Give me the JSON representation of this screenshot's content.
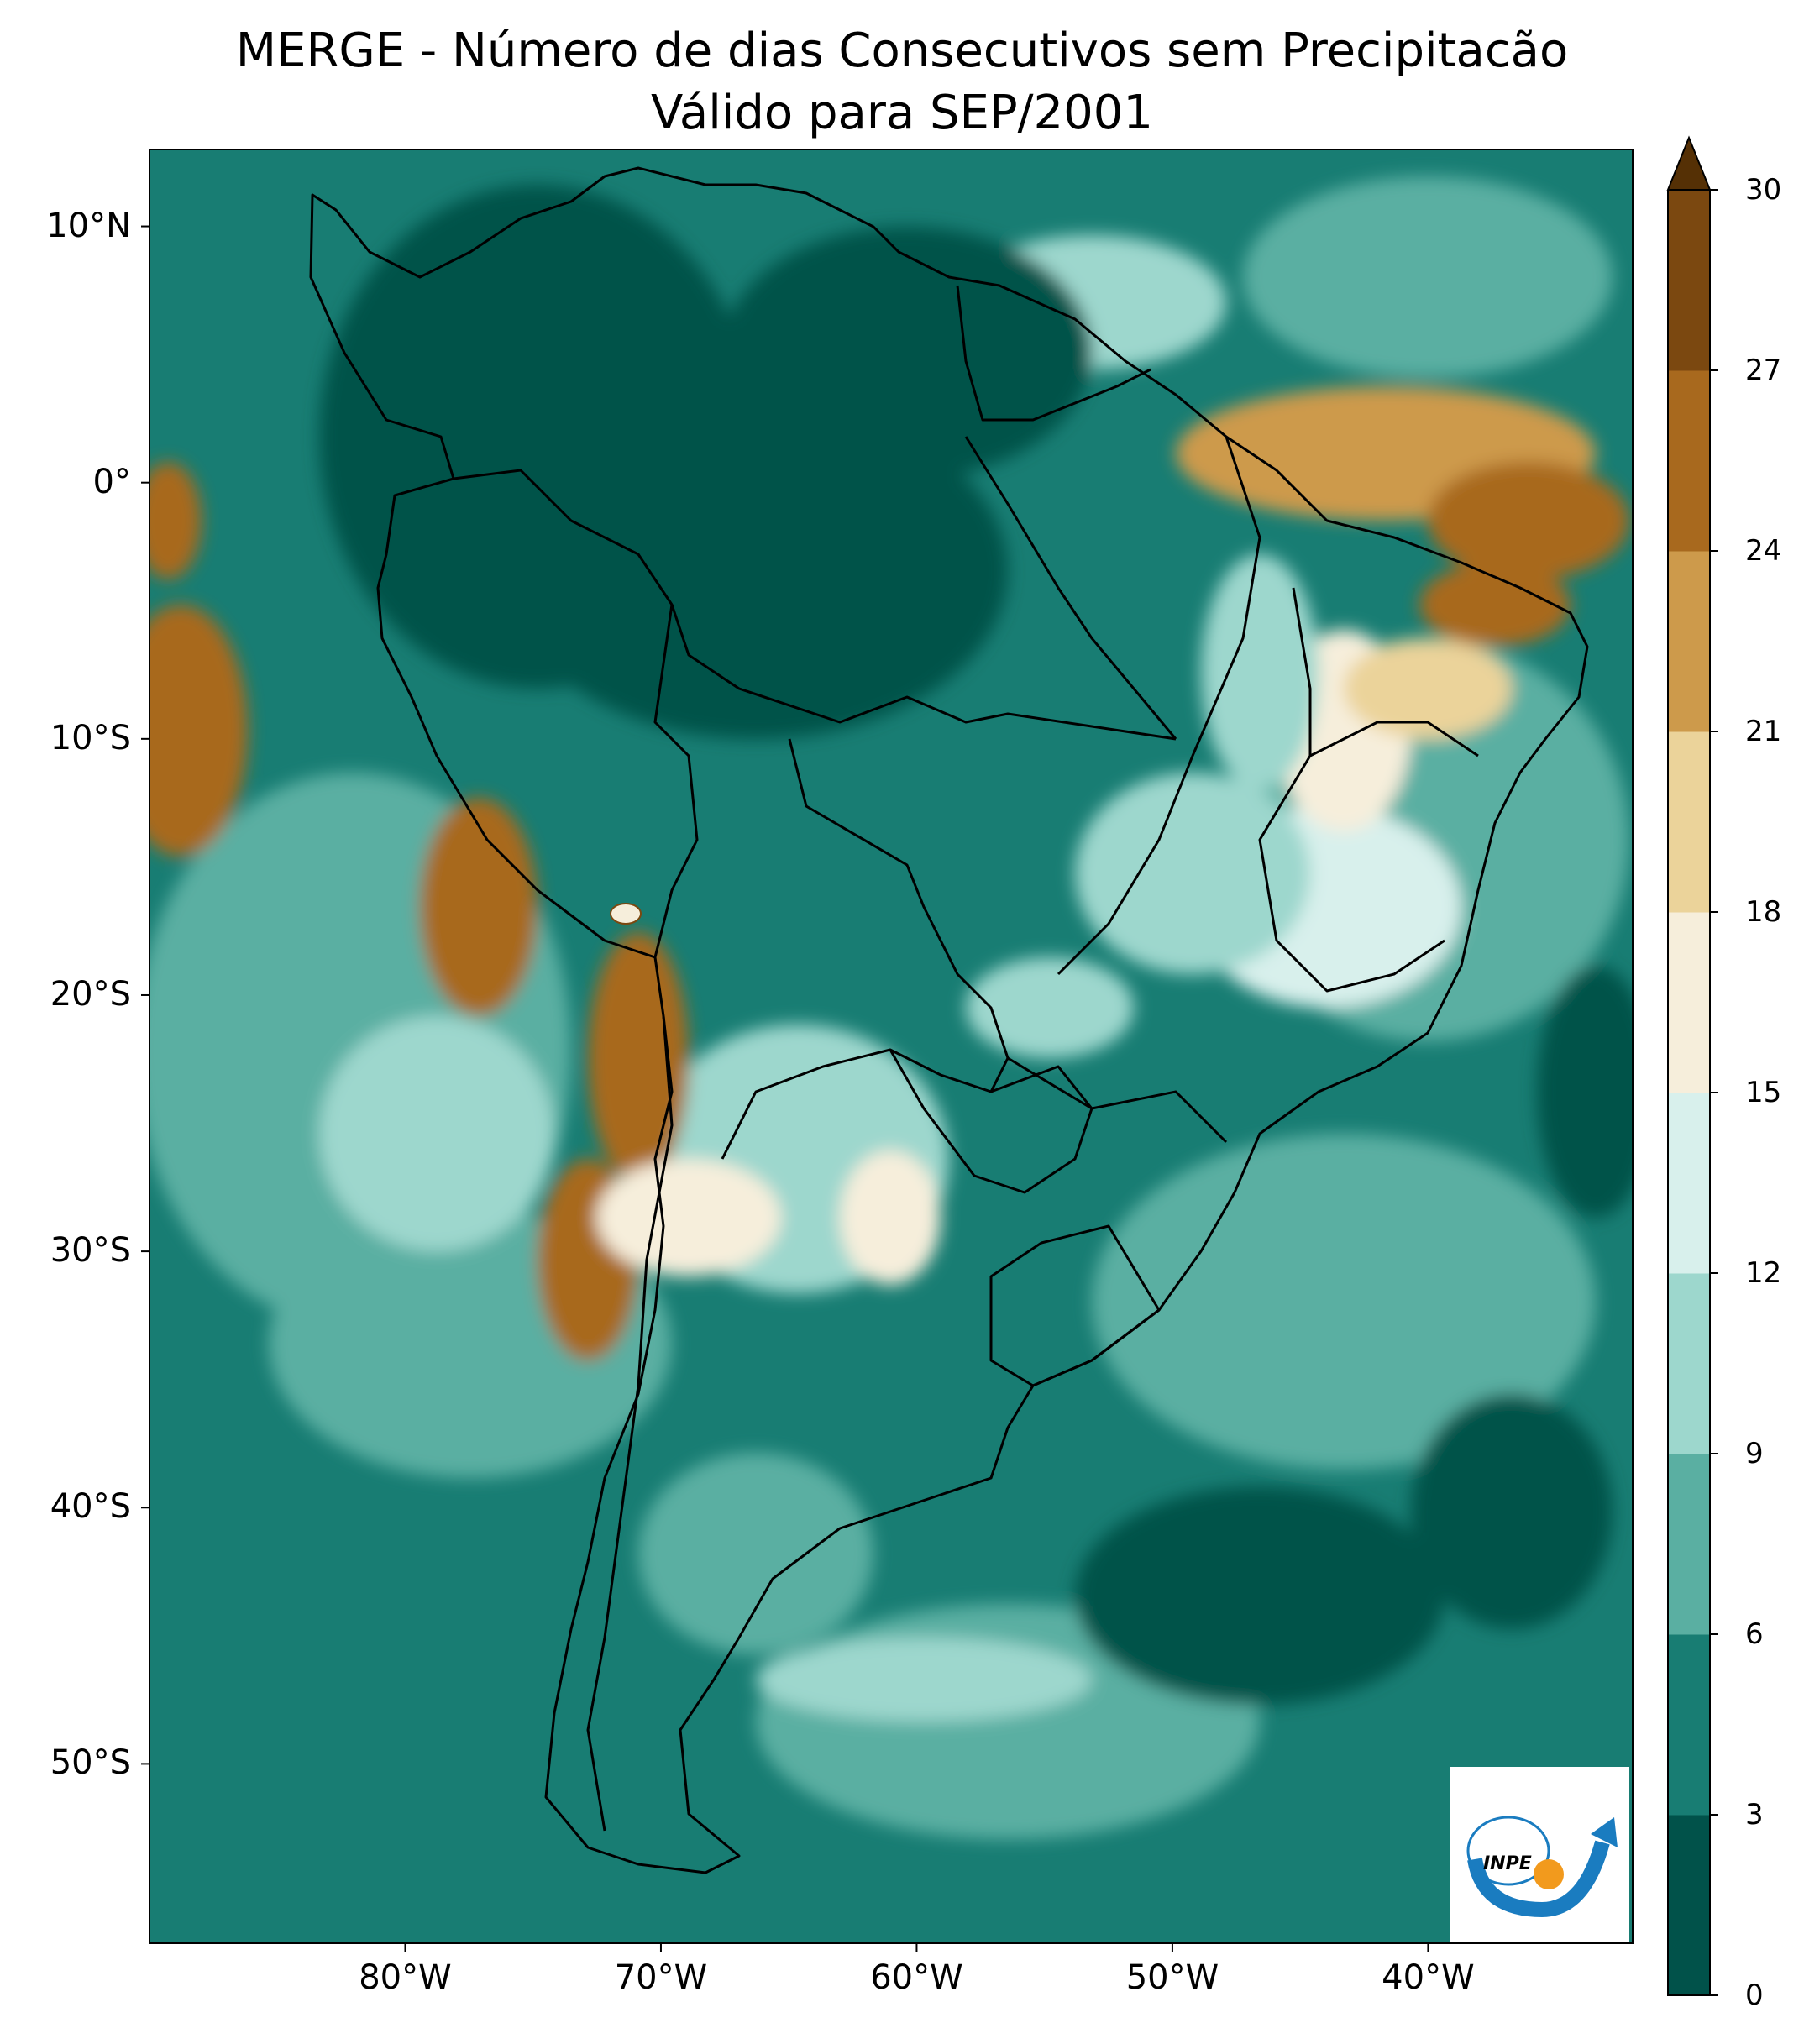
{
  "title_line1": "MERGE - Número de dias Consecutivos sem Precipitacão",
  "title_line2": "Válido para SEP/2001",
  "lat_ticks": [
    {
      "label": "10°N",
      "lat": 10
    },
    {
      "label": "0°",
      "lat": 0
    },
    {
      "label": "10°S",
      "lat": -10
    },
    {
      "label": "20°S",
      "lat": -20
    },
    {
      "label": "30°S",
      "lat": -30
    },
    {
      "label": "40°S",
      "lat": -40
    },
    {
      "label": "50°S",
      "lat": -50
    }
  ],
  "lon_ticks": [
    {
      "label": "80°W",
      "lon": -80
    },
    {
      "label": "70°W",
      "lon": -70
    },
    {
      "label": "60°W",
      "lon": -60
    },
    {
      "label": "50°W",
      "lon": -50
    },
    {
      "label": "40°W",
      "lon": -40
    }
  ],
  "extent": {
    "lon_min": -90,
    "lon_max": -32,
    "lat_min": -57,
    "lat_max": 13
  },
  "colorbar": {
    "levels": [
      0,
      3,
      6,
      9,
      12,
      15,
      18,
      21,
      24,
      27,
      30
    ],
    "colors": [
      "#01524a",
      "#187d73",
      "#5aafa2",
      "#9dd7cd",
      "#d8f0ec",
      "#f6eedb",
      "#ebd39a",
      "#cd9a4b",
      "#a8691e",
      "#7b4810"
    ],
    "extend_color": "#553005",
    "extend": "max"
  },
  "logo_text": "INPE"
}
